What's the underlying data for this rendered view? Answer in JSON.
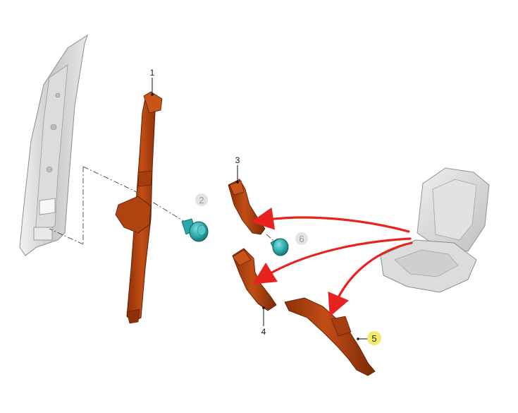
{
  "diagram": {
    "callouts": [
      {
        "id": "1",
        "label": "1",
        "style": "plain"
      },
      {
        "id": "2",
        "label": "2",
        "style": "grey-circle"
      },
      {
        "id": "3",
        "label": "3",
        "style": "plain"
      },
      {
        "id": "4",
        "label": "4",
        "style": "plain"
      },
      {
        "id": "5",
        "label": "5",
        "style": "yellow-circle"
      },
      {
        "id": "6",
        "label": "6",
        "style": "grey-circle"
      }
    ],
    "colors": {
      "belt_part": "#b5400f",
      "belt_shadow": "#7a2a08",
      "fastener": "#2aa7a7",
      "pillar": "#cfcfcf",
      "seat": "#d8d8d8",
      "arrow": "#e8231f",
      "highlight": "#f3ea6a",
      "grey_circle": "#e3e3e3"
    }
  }
}
